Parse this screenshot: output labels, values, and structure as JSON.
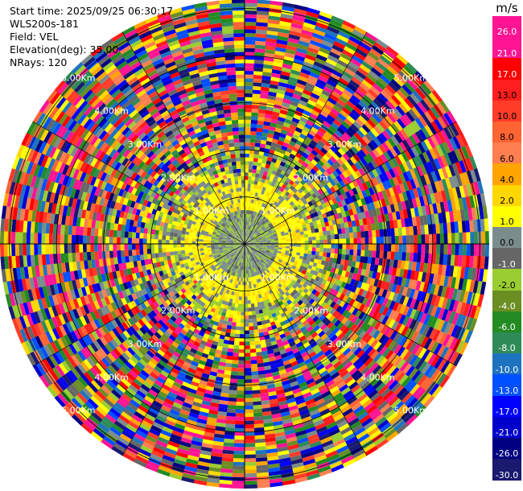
{
  "header": {
    "start_time": "Start time: 2025/09/25 06:30:17",
    "instrument": "WLS200s-181",
    "field": "Field: VEL",
    "elevation": "Elevation(deg): 35.00",
    "nrays": "NRays: 120"
  },
  "colorbar": {
    "unit": "m/s",
    "ticks": [
      "26.0",
      "21.0",
      "17.0",
      "13.0",
      "10.0",
      "8.0",
      "6.0",
      "4.0",
      "2.0",
      "1.0",
      "0.0",
      "-1.0",
      "-2.0",
      "-4.0",
      "-6.0",
      "-8.0",
      "-10.0",
      "-13.0",
      "-17.0",
      "-21.0",
      "-26.0",
      "-30.0"
    ],
    "colors": [
      "#ff1493",
      "#ff1493",
      "#ff0000",
      "#ff1e1e",
      "#ff3c28",
      "#ff6432",
      "#ff7f50",
      "#ffa500",
      "#ffd700",
      "#ffff00",
      "#7b8c8c",
      "#666666",
      "#9acd32",
      "#6b8e23",
      "#228b22",
      "#2e8b57",
      "#1e73be",
      "#0050ff",
      "#0000ff",
      "#0000cd",
      "#000080",
      "#191970"
    ]
  },
  "chart_data": {
    "type": "heatmap",
    "projection": "polar PPI",
    "field": "VEL",
    "units": "m/s",
    "nrays": 120,
    "value_range": [
      -30.0,
      26.0
    ],
    "range_ring_labels": [
      "1.00Km",
      "2.00Km",
      "3.00Km",
      "4.00Km",
      "5.00Km"
    ],
    "range_rings_km": [
      1,
      2,
      3,
      4,
      5
    ],
    "max_range_km": 5.2,
    "description_bands": [
      {
        "range_km": [
          0,
          0.7
        ],
        "dominant": "gray/green near-zero velocities"
      },
      {
        "range_km": [
          0.7,
          1.25
        ],
        "dominant": "yellow 1-4 m/s"
      },
      {
        "range_km": [
          1.25,
          2.2
        ],
        "dominant": "mixed gray/yellow/green"
      },
      {
        "range_km": [
          2.2,
          5.2
        ],
        "dominant": "noisy random colors across full scale"
      }
    ]
  }
}
